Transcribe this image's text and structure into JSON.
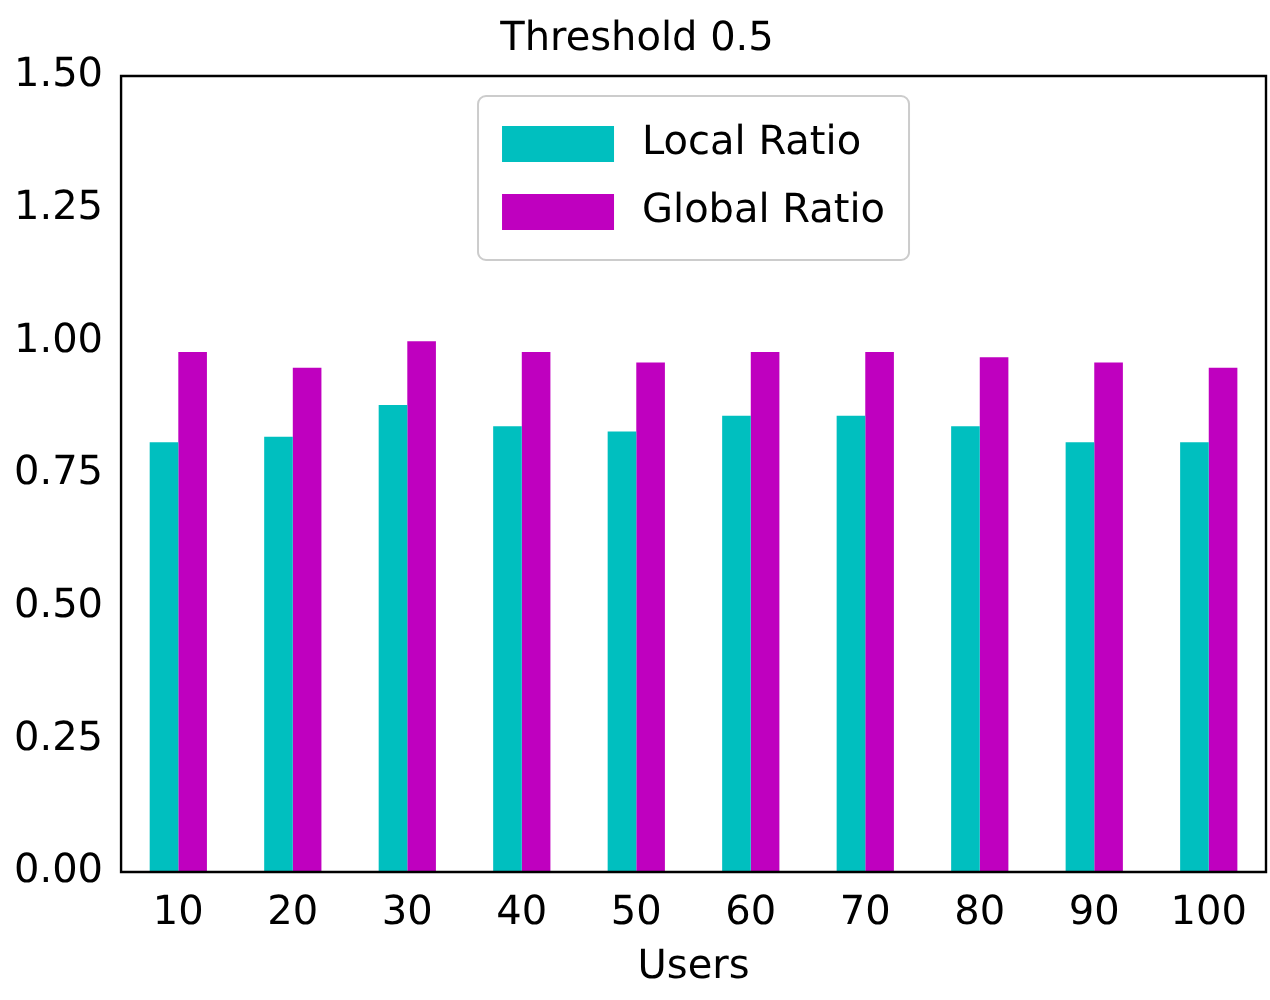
{
  "chart_data": {
    "type": "bar",
    "title": "Threshold 0.5",
    "xlabel": "Users",
    "categories": [
      "10",
      "20",
      "30",
      "40",
      "50",
      "60",
      "70",
      "80",
      "90",
      "100"
    ],
    "series": [
      {
        "name": "Local Ratio",
        "color": "#00bfbf",
        "values": [
          0.81,
          0.82,
          0.88,
          0.84,
          0.83,
          0.86,
          0.86,
          0.84,
          0.81,
          0.81
        ]
      },
      {
        "name": "Global Ratio",
        "color": "#bf00bf",
        "values": [
          0.98,
          0.95,
          1.0,
          0.98,
          0.96,
          0.98,
          0.98,
          0.97,
          0.96,
          0.95
        ]
      }
    ],
    "ylim": [
      0,
      1.5
    ],
    "yticks": [
      {
        "value": 0,
        "label": "0.00"
      },
      {
        "value": 0.25,
        "label": "0.25"
      },
      {
        "value": 0.5,
        "label": "0.50"
      },
      {
        "value": 0.75,
        "label": "0.75"
      },
      {
        "value": 1,
        "label": "1.00"
      },
      {
        "value": 1.25,
        "label": "1.25"
      },
      {
        "value": 1.5,
        "label": "1.50"
      }
    ],
    "legend": "top",
    "grid": false
  }
}
